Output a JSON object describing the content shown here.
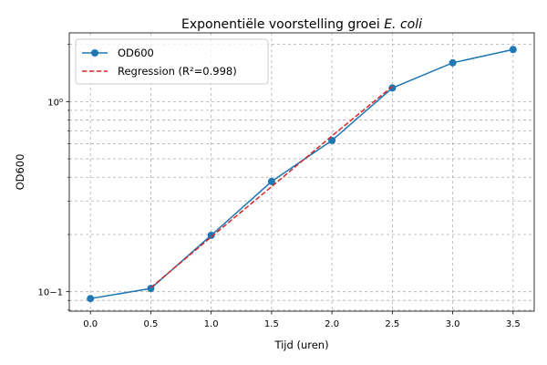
{
  "chart_data": {
    "type": "line",
    "title": {
      "main": "Exponentiële voorstelling groei ",
      "italic": "E. coli"
    },
    "xlabel": "Tijd (uren)",
    "ylabel": "OD600",
    "y_scale": "log",
    "xlim": [
      -0.175,
      3.675
    ],
    "ylim": [
      0.079,
      2.3
    ],
    "x_ticks": [
      0.0,
      0.5,
      1.0,
      1.5,
      2.0,
      2.5,
      3.0,
      3.5
    ],
    "x_tick_labels": [
      "0.0",
      "0.5",
      "1.0",
      "1.5",
      "2.0",
      "2.5",
      "3.0",
      "3.5"
    ],
    "y_major_ticks": [
      0.1,
      1
    ],
    "y_major_tick_labels": [
      "10−1",
      "10⁰"
    ],
    "y_minor_ticks": [
      0.08,
      0.09,
      0.2,
      0.3,
      0.4,
      0.5,
      0.6,
      0.7,
      0.8,
      0.9,
      2
    ],
    "grid": true,
    "legend_position": "top-left",
    "series": [
      {
        "name": "OD600",
        "style": "solid-markers",
        "color": "#1f77b4",
        "x": [
          0.0,
          0.5,
          1.0,
          1.5,
          2.0,
          2.5,
          3.0,
          3.5
        ],
        "y": [
          0.092,
          0.104,
          0.198,
          0.38,
          0.625,
          1.18,
          1.6,
          1.88
        ]
      },
      {
        "name": "Regression (R²=0.998)",
        "style": "dashed",
        "color": "#d62728",
        "x": [
          0.5,
          1.0,
          1.5,
          2.0,
          2.5
        ],
        "y": [
          0.105,
          0.194,
          0.357,
          0.66,
          1.2
        ]
      }
    ]
  }
}
